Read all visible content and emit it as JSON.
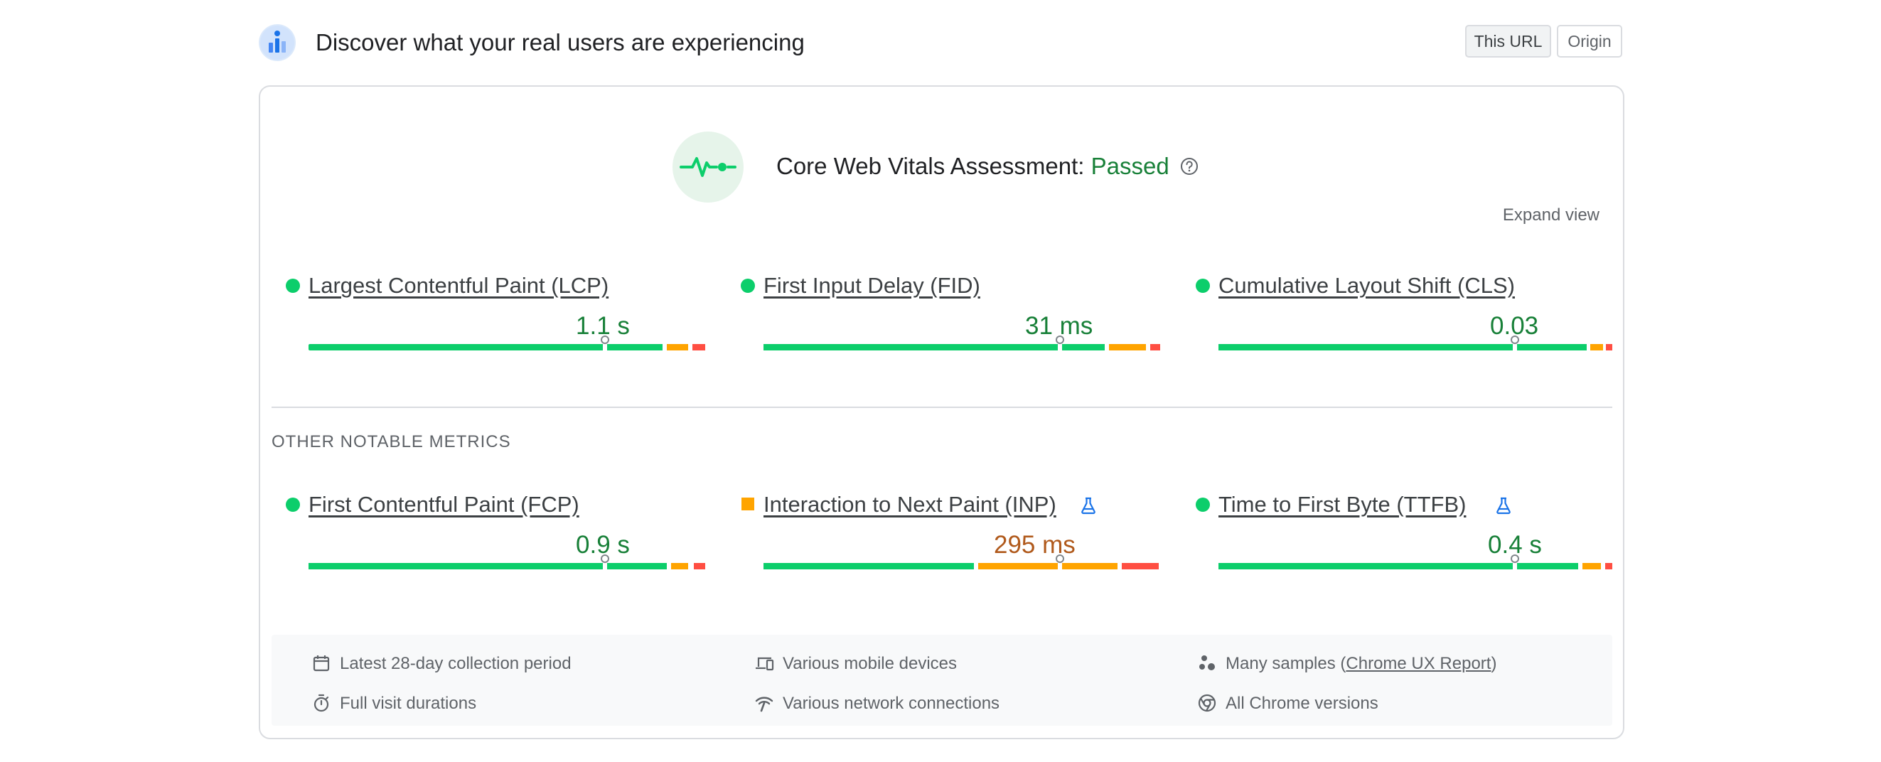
{
  "header": {
    "title": "Discover what your real users are experiencing",
    "logo_icon": "crux-bar-chart-icon",
    "toggle": {
      "this_url": "This URL",
      "origin": "Origin",
      "selected": "This URL"
    }
  },
  "assessment": {
    "icon": "heartbeat-icon",
    "label": "Core Web Vitals Assessment: ",
    "status": "Passed",
    "help_icon": "help-icon",
    "expand_label": "Expand view"
  },
  "core_metrics": [
    {
      "name": "Largest Contentful Paint (LCP)",
      "value": "1.1 s",
      "rating": "good",
      "indicator": "green-dot"
    },
    {
      "name": "First Input Delay (FID)",
      "value": "31 ms",
      "rating": "good",
      "indicator": "green-dot"
    },
    {
      "name": "Cumulative Layout Shift (CLS)",
      "value": "0.03",
      "rating": "good",
      "indicator": "green-dot"
    }
  ],
  "other_label": "OTHER NOTABLE METRICS",
  "other_metrics": [
    {
      "name": "First Contentful Paint (FCP)",
      "value": "0.9 s",
      "rating": "good",
      "indicator": "green-dot",
      "experimental": false
    },
    {
      "name": "Interaction to Next Paint (INP)",
      "value": "295 ms",
      "rating": "needs-improvement",
      "indicator": "orange-square",
      "experimental": true
    },
    {
      "name": "Time to First Byte (TTFB)",
      "value": "0.4 s",
      "rating": "good",
      "indicator": "green-dot",
      "experimental": true
    }
  ],
  "footer": {
    "period": "Latest 28-day collection period",
    "visits": "Full visit durations",
    "devices": "Various mobile devices",
    "network": "Various network connections",
    "samples_prefix": "Many samples (",
    "samples_link": "Chrome UX Report",
    "samples_suffix": ")",
    "versions": "All Chrome versions"
  },
  "colors": {
    "good": "#0cce6b",
    "good_text": "#188038",
    "needs_improvement": "#ffa400",
    "needs_improvement_text": "#b0591b",
    "poor": "#ff4e42",
    "experimental_icon": "#1a73e8"
  }
}
